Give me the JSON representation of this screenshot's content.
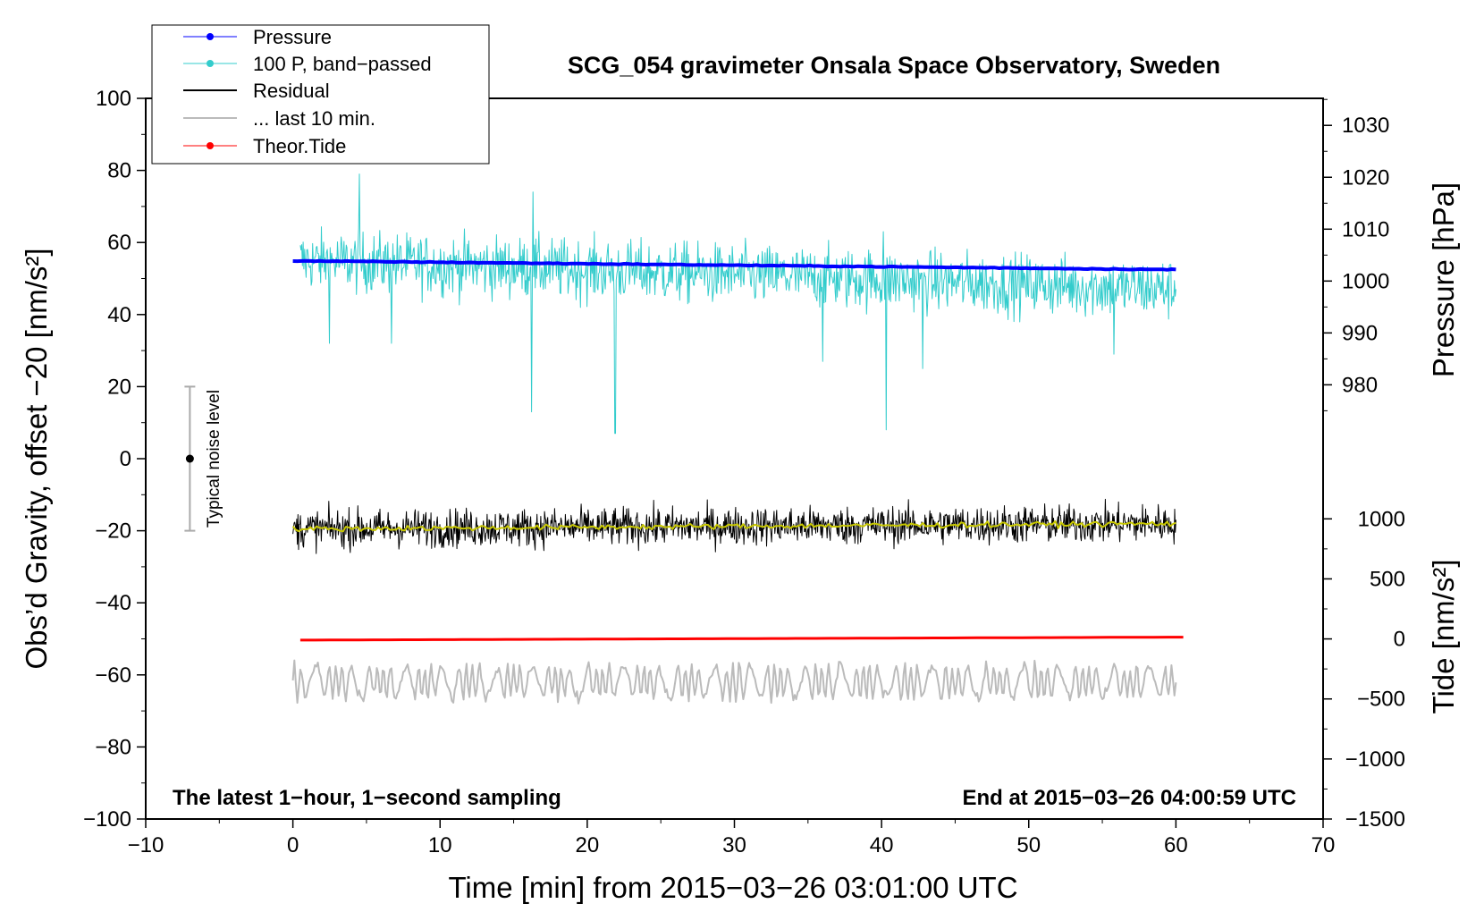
{
  "chart_data": {
    "type": "line",
    "title": "SCG_054 gravimeter Onsala Space Observatory, Sweden",
    "xlabel": "Time [min] from 2015−03−26 03:01:00 UTC",
    "ylabel_left": "Obs’d Gravity, offset −20 [nm/s²]",
    "ylabel_right_top": "Pressure [hPa]",
    "ylabel_right_bottom": "Tide [nm/s²]",
    "xlim": [
      -10,
      70
    ],
    "ylim": [
      -100,
      100
    ],
    "x_ticks": [
      -10,
      0,
      10,
      20,
      30,
      40,
      50,
      60,
      70
    ],
    "x_tick_labels": [
      "−10",
      "0",
      "10",
      "20",
      "30",
      "40",
      "50",
      "60",
      "70"
    ],
    "y_ticks": [
      -100,
      -80,
      -60,
      -40,
      -20,
      0,
      20,
      40,
      60,
      80,
      100
    ],
    "y_tick_labels": [
      "−100",
      "−80",
      "−60",
      "−40",
      "−20",
      "0",
      "20",
      "40",
      "60",
      "80",
      "100"
    ],
    "pressure_axis": {
      "ticks": [
        980,
        990,
        1000,
        1010,
        1020,
        1030
      ],
      "tick_labels": [
        "980",
        "990",
        "1000",
        "1010",
        "1020",
        "1030"
      ],
      "map": {
        "value_a": 980,
        "y_a": 20.5,
        "value_b": 1030,
        "y_b": 92.5
      }
    },
    "tide_axis": {
      "ticks": [
        -1500,
        -1000,
        -500,
        0,
        500,
        1000
      ],
      "tick_labels": [
        "−1500",
        "−1000",
        "−500",
        "0",
        "500",
        "1000"
      ],
      "map": {
        "value_a": -1500,
        "y_a": -100,
        "value_b": 1000,
        "y_b": -16.7
      }
    },
    "annotations": {
      "bottom_left": "The latest 1−hour, 1−second sampling",
      "bottom_right": "End at 2015−03−26 04:00:59 UTC",
      "noise_label": "Typical noise level"
    },
    "noise_bar": {
      "x": -7,
      "center": 0,
      "low": -20,
      "high": 20
    },
    "legend": {
      "position": "top-left",
      "entries": [
        {
          "label": "Pressure",
          "color": "#0000ff",
          "marker": true
        },
        {
          "label": "100 P, band−passed",
          "color": "#33cccc",
          "marker": true
        },
        {
          "label": "Residual",
          "color": "#000000",
          "marker": false
        },
        {
          "label": "... last 10 min.",
          "color": "#bbbbbb",
          "marker": false
        },
        {
          "label": "Theor.Tide",
          "color": "#ff0000",
          "marker": true
        }
      ]
    },
    "series": [
      {
        "name": "Pressure",
        "color": "#0000ff",
        "axis": "pressure",
        "x_range": [
          0,
          60
        ],
        "description": "slowly decreasing pressure",
        "start": 1003.9,
        "end": 1002.2
      },
      {
        "name": "100 P, band−passed",
        "color": "#33cccc",
        "axis": "left",
        "x_range": [
          0.5,
          60
        ],
        "baseline": 55,
        "baseline_end": 47,
        "noise_amplitude": 8,
        "spikes": [
          {
            "x": 2.5,
            "y": 32
          },
          {
            "x": 6.7,
            "y": 32
          },
          {
            "x": 16.2,
            "y": 13
          },
          {
            "x": 21.9,
            "y": 7
          },
          {
            "x": 36,
            "y": 27
          },
          {
            "x": 40.3,
            "y": 8
          },
          {
            "x": 42.8,
            "y": 25
          },
          {
            "x": 55.8,
            "y": 29
          },
          {
            "x": 4.5,
            "y": 79
          },
          {
            "x": 16.3,
            "y": 74
          },
          {
            "x": 40.1,
            "y": 63
          }
        ]
      },
      {
        "name": "Residual",
        "color": "#000000",
        "axis": "left",
        "x_range": [
          0,
          60
        ],
        "baseline_start": -19.5,
        "baseline_end": -18,
        "noise_amplitude": 5
      },
      {
        "name": "Residual smoothed",
        "color": "#c8c800",
        "axis": "left",
        "x_range": [
          0,
          60
        ],
        "baseline_start": -19.5,
        "baseline_end": -18
      },
      {
        "name": "... last 10 min.",
        "color": "#bbbbbb",
        "axis": "left",
        "x_range": [
          0,
          60
        ],
        "baseline": -62,
        "amplitude": 5
      },
      {
        "name": "Theor.Tide",
        "color": "#ff0000",
        "axis": "tide",
        "x_range": [
          0.5,
          60.5
        ],
        "start": -10,
        "end": 15
      }
    ]
  }
}
